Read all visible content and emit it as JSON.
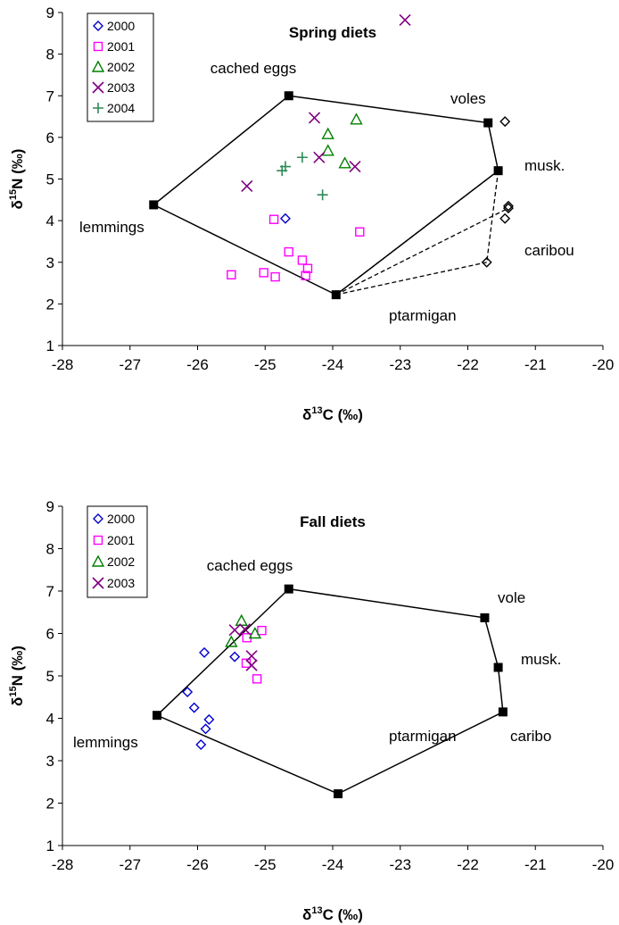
{
  "chart_data": [
    {
      "type": "scatter",
      "title": "Spring diets",
      "xlabel": "δ13C (‰)",
      "ylabel": "δ15N (‰)",
      "xlim": [
        -28,
        -20
      ],
      "ylim": [
        1,
        9
      ],
      "xticks": [
        -28,
        -27,
        -26,
        -25,
        -24,
        -23,
        -22,
        -21,
        -20
      ],
      "yticks": [
        1,
        2,
        3,
        4,
        5,
        6,
        7,
        8,
        9
      ],
      "legend_position": "top-left",
      "sources": [
        {
          "name": "cached eggs",
          "x": -24.65,
          "y": 7.0
        },
        {
          "name": "voles",
          "x": -21.7,
          "y": 6.35
        },
        {
          "name": "musk.",
          "x": -21.55,
          "y": 5.2
        },
        {
          "name": "caribou",
          "x": null,
          "y": null
        },
        {
          "name": "ptarmigan",
          "x": -23.95,
          "y": 2.22
        },
        {
          "name": "lemmings",
          "x": -26.65,
          "y": 4.38
        }
      ],
      "polygon": [
        [
          -24.65,
          7.0
        ],
        [
          -21.7,
          6.35
        ],
        [
          -21.55,
          5.2
        ],
        [
          -23.95,
          2.22
        ],
        [
          -26.65,
          4.38
        ]
      ],
      "dashed_lines": [
        [
          [
            -23.95,
            2.22
          ],
          [
            -21.55,
            5.2
          ]
        ],
        [
          [
            -23.95,
            2.22
          ],
          [
            -21.4,
            4.3
          ]
        ],
        [
          [
            -23.95,
            2.22
          ],
          [
            -21.72,
            3.0
          ]
        ],
        [
          [
            -21.55,
            5.2
          ],
          [
            -21.72,
            3.0
          ]
        ]
      ],
      "open_diamonds": [
        [
          -21.45,
          6.38
        ],
        [
          -21.4,
          4.35
        ],
        [
          -21.4,
          4.3
        ],
        [
          -21.45,
          4.05
        ],
        [
          -21.72,
          3.0
        ]
      ],
      "series": [
        {
          "name": "2000",
          "color": "#0000cc",
          "marker": "diamond",
          "points": [
            [
              -24.7,
              4.05
            ]
          ]
        },
        {
          "name": "2001",
          "color": "#ff00ff",
          "marker": "square",
          "points": [
            [
              -24.87,
              4.03
            ],
            [
              -23.6,
              3.73
            ],
            [
              -24.65,
              3.25
            ],
            [
              -24.45,
              3.05
            ],
            [
              -24.37,
              2.85
            ],
            [
              -24.4,
              2.68
            ],
            [
              -24.85,
              2.65
            ],
            [
              -25.02,
              2.75
            ],
            [
              -25.5,
              2.7
            ]
          ]
        },
        {
          "name": "2002",
          "color": "#008000",
          "marker": "triangle",
          "points": [
            [
              -23.65,
              6.43
            ],
            [
              -24.07,
              6.08
            ],
            [
              -24.07,
              5.68
            ],
            [
              -23.82,
              5.38
            ]
          ]
        },
        {
          "name": "2003",
          "color": "#800080",
          "marker": "x",
          "points": [
            [
              -22.93,
              8.82
            ],
            [
              -24.27,
              6.47
            ],
            [
              -24.2,
              5.52
            ],
            [
              -23.67,
              5.3
            ],
            [
              -25.27,
              4.83
            ]
          ]
        },
        {
          "name": "2004",
          "color": "#2e8b57",
          "marker": "plus",
          "points": [
            [
              -24.45,
              5.52
            ],
            [
              -24.7,
              5.3
            ],
            [
              -24.75,
              5.2
            ],
            [
              -24.15,
              4.62
            ]
          ]
        }
      ]
    },
    {
      "type": "scatter",
      "title": "Fall diets",
      "xlabel": "δ13C (‰)",
      "ylabel": "δ15N (‰)",
      "xlim": [
        -28,
        -20
      ],
      "ylim": [
        1,
        9
      ],
      "xticks": [
        -28,
        -27,
        -26,
        -25,
        -24,
        -23,
        -22,
        -21,
        -20
      ],
      "yticks": [
        1,
        2,
        3,
        4,
        5,
        6,
        7,
        8,
        9
      ],
      "legend_position": "top-left",
      "sources": [
        {
          "name": "cached eggs",
          "x": -24.65,
          "y": 7.05
        },
        {
          "name": "vole",
          "x": -21.75,
          "y": 6.37
        },
        {
          "name": "musk.",
          "x": -21.55,
          "y": 5.2
        },
        {
          "name": "caribo",
          "x": -21.48,
          "y": 4.15
        },
        {
          "name": "ptarmigan",
          "x": -23.92,
          "y": 2.22
        },
        {
          "name": "lemmings",
          "x": -26.6,
          "y": 4.07
        }
      ],
      "polygon": [
        [
          -24.65,
          7.05
        ],
        [
          -21.75,
          6.37
        ],
        [
          -21.55,
          5.2
        ],
        [
          -21.48,
          4.15
        ],
        [
          -23.92,
          2.22
        ],
        [
          -26.6,
          4.07
        ]
      ],
      "dashed_lines": [],
      "open_diamonds": [],
      "series": [
        {
          "name": "2000",
          "color": "#0000cc",
          "marker": "diamond",
          "points": [
            [
              -25.9,
              5.55
            ],
            [
              -25.45,
              5.45
            ],
            [
              -26.15,
              4.62
            ],
            [
              -26.05,
              4.25
            ],
            [
              -25.83,
              3.97
            ],
            [
              -25.88,
              3.75
            ],
            [
              -25.95,
              3.38
            ]
          ]
        },
        {
          "name": "2001",
          "color": "#ff00ff",
          "marker": "square",
          "points": [
            [
              -25.05,
              6.07
            ],
            [
              -25.27,
              5.9
            ],
            [
              -25.28,
              5.3
            ],
            [
              -25.12,
              4.93
            ]
          ]
        },
        {
          "name": "2002",
          "color": "#008000",
          "marker": "triangle",
          "points": [
            [
              -25.35,
              6.3
            ],
            [
              -25.15,
              6.0
            ],
            [
              -25.5,
              5.8
            ]
          ]
        },
        {
          "name": "2003",
          "color": "#800080",
          "marker": "x",
          "points": [
            [
              -25.45,
              6.08
            ],
            [
              -25.3,
              6.1
            ],
            [
              -25.2,
              5.47
            ],
            [
              -25.2,
              5.25
            ]
          ]
        }
      ]
    }
  ]
}
